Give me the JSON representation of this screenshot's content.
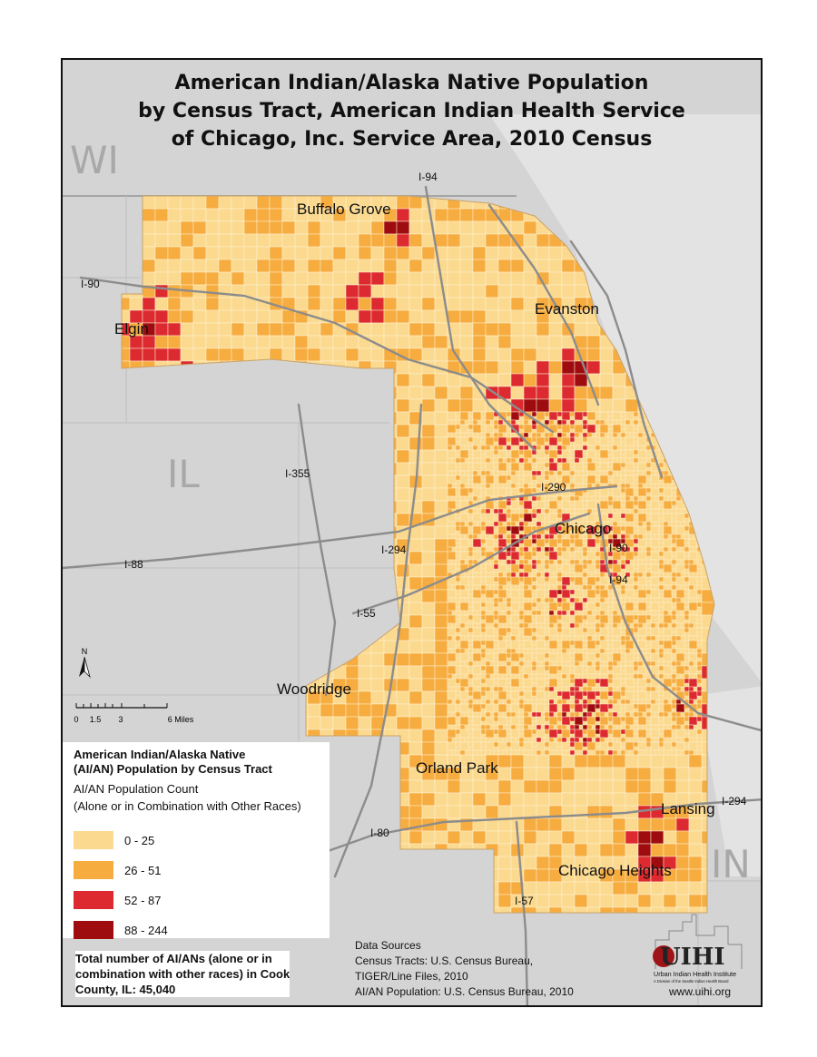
{
  "title": {
    "line1": "American Indian/Alaska Native Population",
    "line2": "by Census Tract,  American Indian Health Service",
    "line3": "of Chicago, Inc. Service Area, 2010 Census"
  },
  "states": {
    "wi": "WI",
    "il": "IL",
    "in": "IN"
  },
  "highways": {
    "i94_north": "I-94",
    "i90_west": "I-90",
    "i355": "I-355",
    "i290": "I-290",
    "i294_west": "I-294",
    "i88": "I-88",
    "i55": "I-55",
    "i90_city": "I-90",
    "i94_south": "I-94",
    "i294_east": "I-294",
    "i80": "I-80",
    "i57": "I-57"
  },
  "cities": {
    "buffalo_grove": "Buffalo Grove",
    "evanston": "Evanston",
    "elgin": "Elgin",
    "chicago": "Chicago",
    "woodridge": "Woodridge",
    "orland_park": "Orland Park",
    "lansing": "Lansing",
    "chicago_heights": "Chicago Heights"
  },
  "scale": {
    "labels": [
      "0",
      "1.5",
      "3",
      "6 Miles"
    ]
  },
  "north_arrow": {
    "label": "N"
  },
  "legend": {
    "title_line1": "American Indian/Alaska Native",
    "title_line2": "(AI/AN) Population by Census Tract",
    "subtitle_line1": "AI/AN Population Count",
    "subtitle_line2": "(Alone or in Combination with Other Races)",
    "classes": [
      {
        "label": "0 - 25",
        "color": "#fbd98f"
      },
      {
        "label": "26 - 51",
        "color": "#f6ac3f"
      },
      {
        "label": "52 - 87",
        "color": "#dd2a30"
      },
      {
        "label": "88 - 244",
        "color": "#9e0c10"
      }
    ]
  },
  "total": {
    "line1": "Total number of AI/ANs (alone or in",
    "line2": "combination with other races) in Cook",
    "line3": "County, IL: 45,040"
  },
  "sources": {
    "heading": "Data Sources",
    "line1": "Census Tracts: U.S. Census Bureau,",
    "line2": "TIGER/Line Files, 2010",
    "line3": "AI/AN Population: U.S. Census Bureau, 2010"
  },
  "logo": {
    "text": "UIHI",
    "subtitle": "Urban Indian Health Institute",
    "tagline": "A Division of the Seattle Indian Health Board",
    "url": "www.uihi.org"
  },
  "colors": {
    "lake": "#dcdcdc",
    "land": "#d3d3d3",
    "road": "#8c8c8c",
    "border": "#a5a5a5"
  }
}
